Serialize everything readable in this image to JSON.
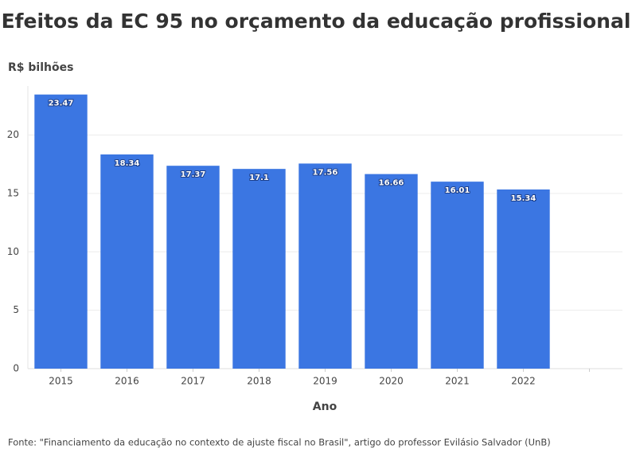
{
  "chart_data": {
    "type": "bar",
    "title": "Efeitos da EC 95 no orçamento da educação profissional",
    "y_label": "R$ bilhões",
    "x_label": "Ano",
    "source": "Fonte: \"Financiamento da educação no contexto de ajuste fiscal no Brasil\", artigo do professor Evilásio Salvador (UnB)",
    "categories": [
      "2015",
      "2016",
      "2017",
      "2018",
      "2019",
      "2020",
      "2021",
      "2022",
      null
    ],
    "values": [
      23.47,
      18.34,
      17.37,
      17.1,
      17.56,
      16.66,
      16.01,
      15.34,
      null
    ],
    "color": "#3b76e2",
    "ylim": [
      0,
      24.2
    ],
    "yticks": [
      0,
      5,
      10,
      15,
      20
    ],
    "grid": true
  }
}
